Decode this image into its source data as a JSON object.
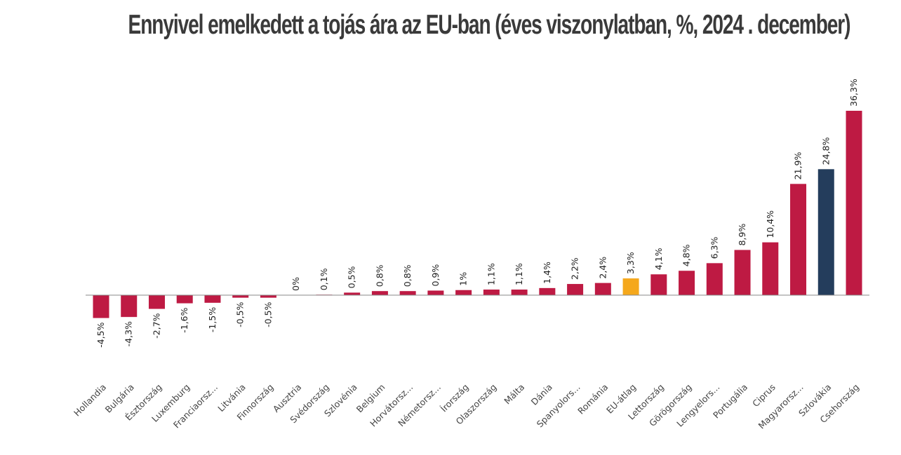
{
  "chart_data": {
    "type": "bar",
    "title": "Ennyivel emelkedett a tojás ára az EU-ban (éves viszonylatban, %, 2024 . december)",
    "xlabel": "",
    "ylabel": "",
    "ylim": [
      -4.5,
      36.3
    ],
    "grid": false,
    "legend": "none",
    "categories": [
      "Hollandia",
      "Bulgária",
      "Észtország",
      "Luxemburg",
      "Franciaorsz...",
      "Litvánia",
      "Finnország",
      "Ausztria",
      "Svédország",
      "Szlovénia",
      "Belgium",
      "Horvátorsz...",
      "Németorsz...",
      "Írország",
      "Olaszország",
      "Málta",
      "Dánia",
      "Spanyolors...",
      "Románia",
      "EU-átlag",
      "Lettország",
      "Görögország",
      "Lengyelors...",
      "Portugália",
      "Ciprus",
      "Magyarorsz...",
      "Szlovákia",
      "Csehország"
    ],
    "values": [
      -4.5,
      -4.3,
      -2.7,
      -1.6,
      -1.5,
      -0.5,
      -0.5,
      0,
      0.1,
      0.5,
      0.8,
      0.8,
      0.9,
      1,
      1.1,
      1.1,
      1.4,
      2.2,
      2.4,
      3.3,
      4.1,
      4.8,
      6.3,
      8.9,
      10.4,
      21.9,
      24.8,
      36.3
    ],
    "value_labels": [
      "-4,5%",
      "-4,3%",
      "-2,7%",
      "-1,6%",
      "-1,5%",
      "-0,5%",
      "-0,5%",
      "0%",
      "0,1%",
      "0,5%",
      "0,8%",
      "0,8%",
      "0,9%",
      "1%",
      "1,1%",
      "1,1%",
      "1,4%",
      "2,2%",
      "2,4%",
      "3,3%",
      "4,1%",
      "4,8%",
      "6,3%",
      "8,9%",
      "10,4%",
      "21,9%",
      "24,8%",
      "36,3%"
    ],
    "bar_colors": [
      "#be1a43",
      "#be1a43",
      "#be1a43",
      "#be1a43",
      "#be1a43",
      "#be1a43",
      "#be1a43",
      "#be1a43",
      "#be1a43",
      "#be1a43",
      "#be1a43",
      "#be1a43",
      "#be1a43",
      "#be1a43",
      "#be1a43",
      "#be1a43",
      "#be1a43",
      "#be1a43",
      "#be1a43",
      "#f5a81c",
      "#be1a43",
      "#be1a43",
      "#be1a43",
      "#be1a43",
      "#be1a43",
      "#be1a43",
      "#243d5c",
      "#be1a43"
    ],
    "colors": {
      "default": "#be1a43",
      "eu_average": "#f5a81c",
      "highlight": "#243d5c",
      "axis": "#888888"
    }
  }
}
